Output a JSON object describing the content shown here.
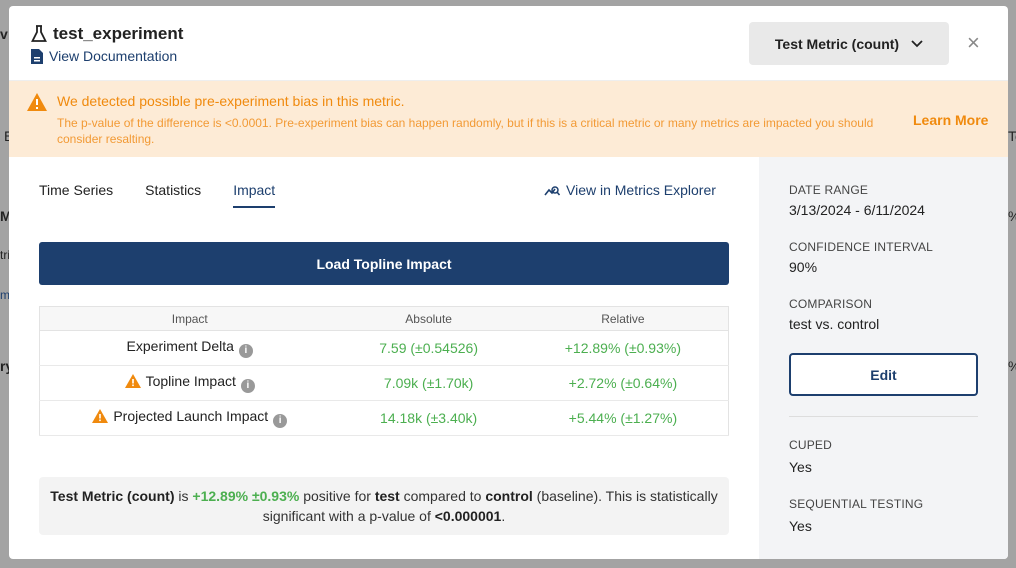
{
  "background_fragments": [
    "v",
    "E",
    "M",
    "tri",
    "m",
    "ry",
    "Te",
    "%",
    "%"
  ],
  "header": {
    "title": "test_experiment",
    "doc_link": "View Documentation",
    "metric_select": "Test Metric (count)",
    "close": "×"
  },
  "banner": {
    "heading": "We detected possible pre-experiment bias in this metric.",
    "body": "The p-value of the difference is <0.0001. Pre-experiment bias can happen randomly, but if this is a critical metric or many metrics are impacted you should consider resalting.",
    "learn_more": "Learn More",
    "color": "#f08a0e"
  },
  "tabs": [
    {
      "label": "Time Series"
    },
    {
      "label": "Statistics"
    },
    {
      "label": "Impact",
      "active": true
    }
  ],
  "explorer_link": "View in Metrics Explorer",
  "load_button": "Load Topline Impact",
  "table": {
    "headers": [
      "Impact",
      "Absolute",
      "Relative"
    ],
    "rows": [
      {
        "name": "Experiment Delta",
        "warning": false,
        "absolute": "7.59 (±0.54526)",
        "relative": "+12.89% (±0.93%)"
      },
      {
        "name": "Topline Impact",
        "warning": true,
        "absolute": "7.09k (±1.70k)",
        "relative": "+2.72% (±0.64%)"
      },
      {
        "name": "Projected Launch Impact",
        "warning": true,
        "absolute": "14.18k (±3.40k)",
        "relative": "+5.44% (±1.27%)"
      }
    ]
  },
  "summary": {
    "metric": "Test Metric (count)",
    "is": " is ",
    "delta": "+12.89% ±0.93%",
    "t1": " positive for ",
    "group": "test",
    "t2": " compared to ",
    "control": "control",
    "t3": " (baseline). This is statistically significant with a p-value of ",
    "pvalue": "<0.000001",
    "t4": "."
  },
  "sidebar": {
    "date_range_label": "DATE RANGE",
    "date_range": "3/13/2024 - 6/11/2024",
    "ci_label": "CONFIDENCE INTERVAL",
    "ci": "90%",
    "comparison_label": "COMPARISON",
    "comparison": "test vs. control",
    "edit": "Edit",
    "cuped_label": "CUPED",
    "cuped": "Yes",
    "seq_label": "SEQUENTIAL TESTING",
    "seq": "Yes"
  },
  "colors": {
    "primary": "#1d3f6e",
    "positive": "#4caf50",
    "warning": "#f08a0e"
  }
}
